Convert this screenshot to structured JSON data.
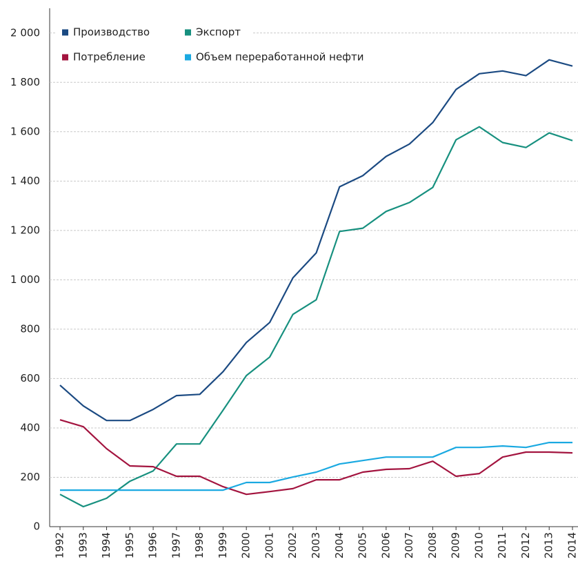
{
  "chart_data": {
    "type": "line",
    "categories": [
      "1992",
      "1993",
      "1994",
      "1995",
      "1996",
      "1997",
      "1998",
      "1999",
      "2000",
      "2001",
      "2002",
      "2003",
      "2004",
      "2005",
      "2006",
      "2007",
      "2008",
      "2009",
      "2010",
      "2011",
      "2012",
      "2013",
      "2014"
    ],
    "series": [
      {
        "name": "Производство",
        "color": "#1b4a82",
        "values": [
          573,
          489,
          430,
          430,
          475,
          531,
          536,
          628,
          746,
          827,
          1008,
          1109,
          1377,
          1422,
          1500,
          1550,
          1637,
          1771,
          1835,
          1846,
          1827,
          1891,
          1866
        ]
      },
      {
        "name": "Экспорт",
        "color": "#17907f",
        "values": [
          131,
          81,
          115,
          184,
          226,
          335,
          335,
          472,
          612,
          687,
          860,
          919,
          1196,
          1209,
          1277,
          1313,
          1374,
          1567,
          1620,
          1556,
          1536,
          1595,
          1564
        ]
      },
      {
        "name": "Потребление",
        "color": "#a3143f",
        "values": [
          433,
          405,
          316,
          246,
          243,
          204,
          204,
          162,
          131,
          142,
          154,
          190,
          190,
          221,
          232,
          235,
          265,
          204,
          215,
          282,
          302,
          302,
          299
        ]
      },
      {
        "name": "Объем переработанной нефти",
        "color": "#1aa9e1",
        "values": [
          148,
          148,
          148,
          148,
          148,
          148,
          148,
          148,
          179,
          179,
          201,
          221,
          254,
          268,
          282,
          282,
          282,
          321,
          321,
          327,
          321,
          341,
          341
        ]
      }
    ],
    "ylim": [
      0,
      2100
    ],
    "yticks": [
      0,
      200,
      400,
      600,
      800,
      {
        "value": 1000,
        "label": "1 000"
      },
      {
        "value": 1200,
        "label": "1 200"
      },
      {
        "value": 1400,
        "label": "1 400"
      },
      {
        "value": 1600,
        "label": "1 600"
      },
      {
        "value": 1800,
        "label": "1 800"
      },
      {
        "value": 2000,
        "label": "2 000"
      }
    ],
    "grid": true
  }
}
